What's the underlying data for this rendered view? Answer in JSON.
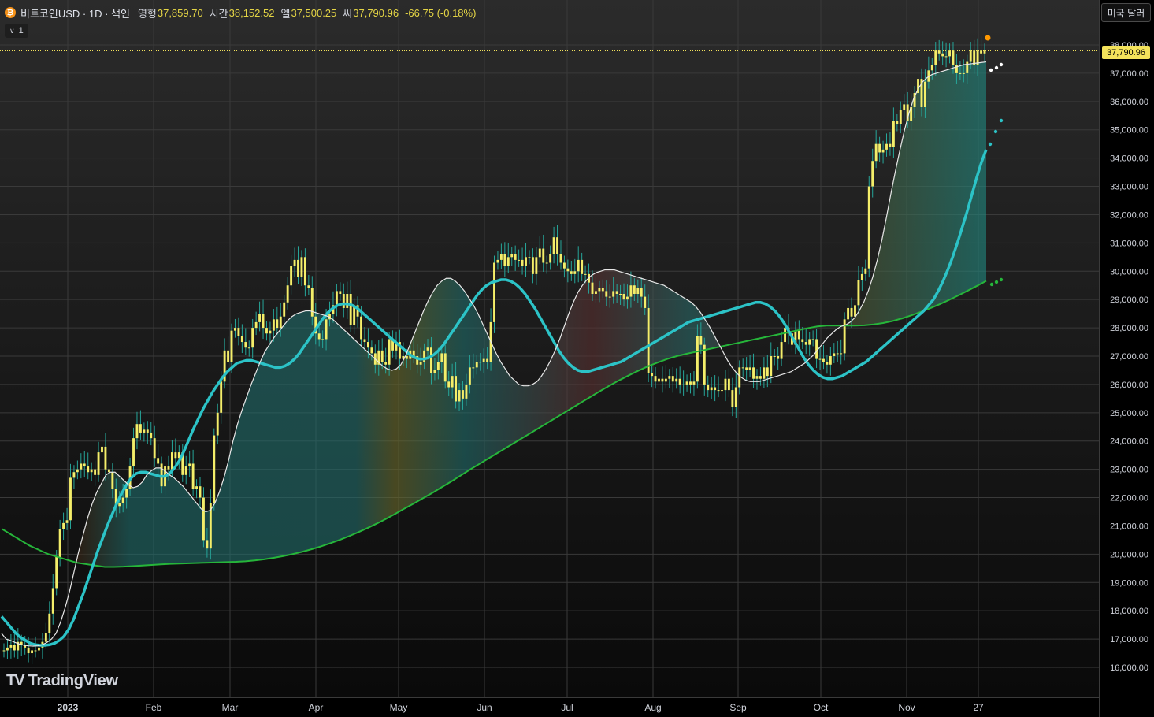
{
  "header": {
    "symbol": "비트코인USD · 1D · 색인",
    "open_label": "영형",
    "open_value": "37,859.70",
    "high_label": "시간",
    "high_value": "38,152.52",
    "low_label": "엘",
    "low_value": "37,500.25",
    "close_label": "씨",
    "close_value": "37,790.96",
    "change": "-66.75 (-0.18%)"
  },
  "indicator_toggle": {
    "count": "1"
  },
  "currency_button": "미국 달러",
  "last_price_label": "37,790.96",
  "branding": "TradingView",
  "colors": {
    "bull": "#f4ee6a",
    "bear": "#f4ee6a",
    "wick": "#26a69a",
    "fast_ma": "#e8e8e8",
    "mid_ma": "#2cc3c7",
    "slow_ma": "#26b53a",
    "last_price": "#f4e35b"
  },
  "chart_data": {
    "type": "line",
    "title": "",
    "ylim": [
      15500,
      38800
    ],
    "y_ticks": [
      16000,
      17000,
      18000,
      19000,
      20000,
      21000,
      22000,
      23000,
      24000,
      25000,
      26000,
      27000,
      28000,
      29000,
      30000,
      31000,
      32000,
      33000,
      34000,
      35000,
      36000,
      37000,
      38000
    ],
    "y_tick_labels": [
      "16,000.00",
      "17,000.00",
      "18,000.00",
      "19,000.00",
      "20,000.00",
      "21,000.00",
      "22,000.00",
      "23,000.00",
      "24,000.00",
      "25,000.00",
      "26,000.00",
      "27,000.00",
      "28,000.00",
      "29,000.00",
      "30,000.00",
      "31,000.00",
      "32,000.00",
      "33,000.00",
      "34,000.00",
      "35,000.00",
      "36,000.00",
      "37,000.00",
      "38,000.00"
    ],
    "x_ticks": [
      "2023",
      "Feb",
      "Mar",
      "Apr",
      "May",
      "Jun",
      "Jul",
      "Aug",
      "Sep",
      "Oct",
      "Nov",
      "27"
    ],
    "grid": true,
    "last_price": 37790.96,
    "close": [
      16600,
      16700,
      16800,
      16600,
      16900,
      16800,
      16700,
      16500,
      16600,
      16600,
      16700,
      16900,
      17200,
      17900,
      18800,
      19900,
      20900,
      21100,
      21200,
      22700,
      22900,
      23000,
      23200,
      23100,
      22900,
      23000,
      22800,
      23600,
      23800,
      23000,
      22900,
      22300,
      21700,
      21800,
      22000,
      22300,
      23100,
      24100,
      24600,
      24300,
      24400,
      24300,
      24100,
      23400,
      23200,
      22400,
      23100,
      23000,
      23600,
      23400,
      23600,
      22800,
      23100,
      23200,
      22300,
      22400,
      22000,
      20500,
      20200,
      21800,
      24200,
      25000,
      26100,
      27200,
      26800,
      27900,
      28000,
      27700,
      27500,
      27300,
      27300,
      28000,
      28200,
      28500,
      28000,
      27800,
      27900,
      28300,
      28000,
      28400,
      28900,
      29500,
      30200,
      30400,
      29800,
      30500,
      29500,
      29400,
      28400,
      27800,
      27600,
      27600,
      28300,
      28500,
      28800,
      29300,
      29200,
      28700,
      29200,
      28100,
      28800,
      28400,
      27600,
      27500,
      27300,
      27100,
      26700,
      27200,
      26800,
      26700,
      27600,
      27200,
      27500,
      26900,
      27000,
      26900,
      27200,
      27000,
      26700,
      26800,
      27200,
      27300,
      26400,
      26500,
      26800,
      27100,
      26100,
      25900,
      26300,
      25400,
      25800,
      25500,
      26000,
      26600,
      26600,
      26800,
      26800,
      26900,
      26800,
      28200,
      30300,
      30400,
      30600,
      30200,
      30500,
      30600,
      30400,
      30400,
      30200,
      30500,
      30500,
      29900,
      30500,
      30800,
      30300,
      30300,
      30600,
      31200,
      30600,
      30300,
      30100,
      30000,
      29900,
      30000,
      30400,
      29900,
      29900,
      29600,
      29200,
      29300,
      29400,
      29300,
      29100,
      29100,
      29300,
      29200,
      29200,
      29000,
      29100,
      29500,
      29200,
      29400,
      29100,
      28700,
      26400,
      26300,
      26100,
      26200,
      26100,
      26200,
      26300,
      26100,
      26200,
      26000,
      26000,
      26100,
      26000,
      26100,
      27700,
      27400,
      26000,
      25800,
      25900,
      25800,
      25800,
      25800,
      26200,
      25800,
      25200,
      25900,
      26600,
      26600,
      26500,
      26600,
      26200,
      26300,
      26200,
      26600,
      26300,
      27000,
      27000,
      26900,
      27500,
      28000,
      27800,
      27400,
      27900,
      27600,
      27500,
      27400,
      27600,
      27600,
      26900,
      26900,
      26800,
      26700,
      27000,
      27100,
      27100,
      27100,
      28300,
      28700,
      28400,
      28800,
      29700,
      29900,
      30100,
      33000,
      33900,
      34500,
      34200,
      34300,
      34500,
      34400,
      35300,
      35200,
      35700,
      35900,
      35300,
      35800,
      36300,
      36800,
      35800,
      36700,
      37100,
      37300,
      37800,
      37700,
      37600,
      37600,
      37800,
      37300,
      37000,
      37000,
      37000,
      37400,
      37800,
      37300,
      37800,
      37700,
      37800
    ],
    "ma_fast": [
      17200,
      17000,
      16950,
      16880,
      16820,
      16780,
      16760,
      16750,
      16760,
      16800,
      16880,
      17000,
      17200,
      17600,
      18100,
      18700,
      19400,
      20100,
      20700,
      21300,
      21800,
      22200,
      22500,
      22800,
      22900,
      22900,
      22750,
      22600,
      22450,
      22350,
      22400,
      22550,
      22800,
      22950,
      23050,
      23050,
      22950,
      22800,
      22700,
      22550,
      22400,
      22200,
      22000,
      21800,
      21600,
      21500,
      21550,
      21800,
      22200,
      22700,
      23300,
      24000,
      24600,
      25100,
      25550,
      26000,
      26400,
      26800,
      27150,
      27400,
      27650,
      27850,
      28050,
      28250,
      28400,
      28500,
      28550,
      28600,
      28600,
      28550,
      28500,
      28450,
      28400,
      28300,
      28150,
      28000,
      27850,
      27700,
      27550,
      27400,
      27250,
      27100,
      26950,
      26800,
      26650,
      26550,
      26500,
      26550,
      26700,
      27000,
      27400,
      27800,
      28200,
      28600,
      28950,
      29250,
      29500,
      29650,
      29750,
      29750,
      29650,
      29500,
      29300,
      29050,
      28800,
      28500,
      28150,
      27800,
      27450,
      27100,
      26800,
      26550,
      26300,
      26150,
      26000,
      25950,
      25950,
      26000,
      26100,
      26300,
      26550,
      26850,
      27200,
      27600,
      28050,
      28500,
      28900,
      29250,
      29500,
      29700,
      29850,
      29950,
      30000,
      30050,
      30050,
      30050,
      30000,
      29950,
      29900,
      29850,
      29800,
      29750,
      29700,
      29650,
      29600,
      29550,
      29500,
      29400,
      29300,
      29200,
      29100,
      29000,
      28900,
      28750,
      28550,
      28300,
      28050,
      27750,
      27450,
      27150,
      26850,
      26600,
      26400,
      26250,
      26150,
      26100,
      26100,
      26100,
      26150,
      26200,
      26250,
      26300,
      26350,
      26400,
      26450,
      26550,
      26650,
      26750,
      26900,
      27050,
      27250,
      27450,
      27650,
      27800,
      27950,
      28050,
      28100,
      28200,
      28350,
      28600,
      28900,
      29300,
      29800,
      30400,
      31100,
      31900,
      32750,
      33550,
      34300,
      35000,
      35600,
      36100,
      36450,
      36700,
      36850,
      36950,
      37000,
      37050,
      37100,
      37150,
      37200,
      37250,
      37300,
      37320,
      37340,
      37360,
      37380,
      37400
    ],
    "ma_mid": [
      17800,
      17600,
      17400,
      17200,
      17050,
      16950,
      16850,
      16800,
      16780,
      16780,
      16800,
      16850,
      16950,
      17100,
      17350,
      17700,
      18150,
      18600,
      19100,
      19600,
      20100,
      20550,
      21000,
      21400,
      21800,
      22150,
      22450,
      22700,
      22850,
      22900,
      22900,
      22850,
      22800,
      22750,
      22750,
      22850,
      23050,
      23300,
      23650,
      24050,
      24450,
      24800,
      25150,
      25450,
      25750,
      26000,
      26250,
      26450,
      26600,
      26750,
      26800,
      26850,
      26850,
      26800,
      26750,
      26700,
      26650,
      26600,
      26600,
      26650,
      26750,
      26900,
      27100,
      27350,
      27600,
      27850,
      28100,
      28350,
      28550,
      28700,
      28800,
      28850,
      28850,
      28800,
      28700,
      28550,
      28400,
      28250,
      28100,
      27950,
      27800,
      27650,
      27500,
      27350,
      27200,
      27050,
      26950,
      26900,
      26900,
      26950,
      27050,
      27200,
      27400,
      27650,
      27900,
      28150,
      28400,
      28650,
      28900,
      29150,
      29350,
      29500,
      29600,
      29650,
      29700,
      29700,
      29650,
      29550,
      29400,
      29200,
      28950,
      28700,
      28400,
      28100,
      27800,
      27500,
      27200,
      26950,
      26750,
      26600,
      26500,
      26450,
      26450,
      26500,
      26550,
      26600,
      26650,
      26700,
      26750,
      26800,
      26900,
      27000,
      27100,
      27200,
      27300,
      27400,
      27500,
      27600,
      27700,
      27800,
      27900,
      28000,
      28100,
      28200,
      28250,
      28300,
      28350,
      28400,
      28450,
      28500,
      28550,
      28600,
      28650,
      28700,
      28750,
      28800,
      28850,
      28900,
      28900,
      28850,
      28750,
      28600,
      28400,
      28150,
      27850,
      27550,
      27250,
      26950,
      26700,
      26500,
      26350,
      26250,
      26200,
      26200,
      26250,
      26300,
      26400,
      26500,
      26600,
      26700,
      26800,
      26950,
      27100,
      27250,
      27400,
      27550,
      27700,
      27850,
      28000,
      28150,
      28300,
      28450,
      28600,
      28800,
      29000,
      29300,
      29650,
      30050,
      30500,
      31000,
      31550,
      32100,
      32700,
      33300,
      33850,
      34300
    ],
    "ma_slow": [
      20900,
      20700,
      20500,
      20300,
      20150,
      20000,
      19900,
      19800,
      19700,
      19650,
      19600,
      19550,
      19550,
      19560,
      19580,
      19600,
      19620,
      19640,
      19660,
      19670,
      19680,
      19690,
      19700,
      19710,
      19720,
      19730,
      19750,
      19780,
      19820,
      19870,
      19930,
      20000,
      20080,
      20170,
      20270,
      20380,
      20500,
      20630,
      20770,
      20920,
      21080,
      21250,
      21430,
      21620,
      21800,
      21990,
      22180,
      22380,
      22580,
      22790,
      23000,
      23200,
      23400,
      23600,
      23800,
      24000,
      24200,
      24400,
      24600,
      24800,
      25000,
      25200,
      25400,
      25600,
      25800,
      25990,
      26170,
      26340,
      26500,
      26650,
      26780,
      26900,
      27000,
      27080,
      27150,
      27220,
      27290,
      27360,
      27430,
      27500,
      27570,
      27640,
      27710,
      27780,
      27850,
      27920,
      27990,
      28050,
      28080,
      28080,
      28080,
      28080,
      28090,
      28120,
      28170,
      28240,
      28330,
      28440,
      28560,
      28690,
      28830,
      28980,
      29140,
      29310,
      29480,
      29660
    ]
  }
}
